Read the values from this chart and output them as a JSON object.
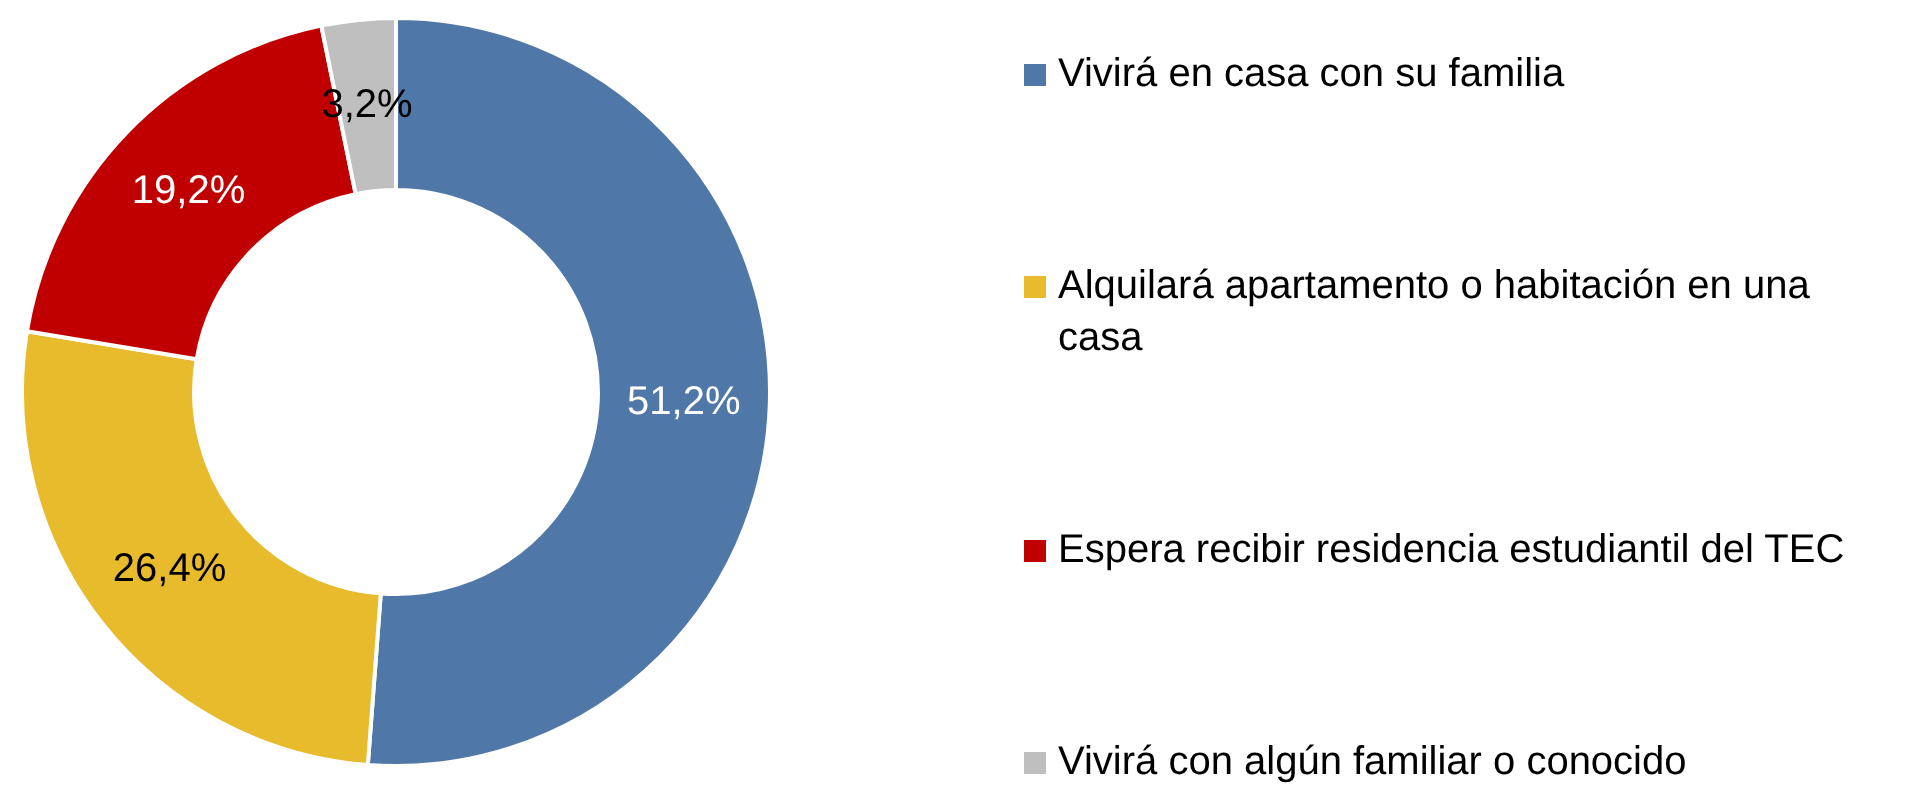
{
  "chart_data": {
    "type": "donut",
    "categories": [
      "Vivirá en casa con su familia",
      "Alquilará apartamento o habitación en una casa",
      "Espera recibir residencia estudiantil del TEC",
      "Vivirá con algún familiar o conocido"
    ],
    "values": [
      51.2,
      26.4,
      19.2,
      3.2
    ],
    "colors": [
      "#4f77a7",
      "#e7bb2b",
      "#c00000",
      "#bfbfbf"
    ],
    "value_labels": [
      "51,2%",
      "26,4%",
      "19,2%",
      "3,2%"
    ],
    "legend": "right"
  }
}
